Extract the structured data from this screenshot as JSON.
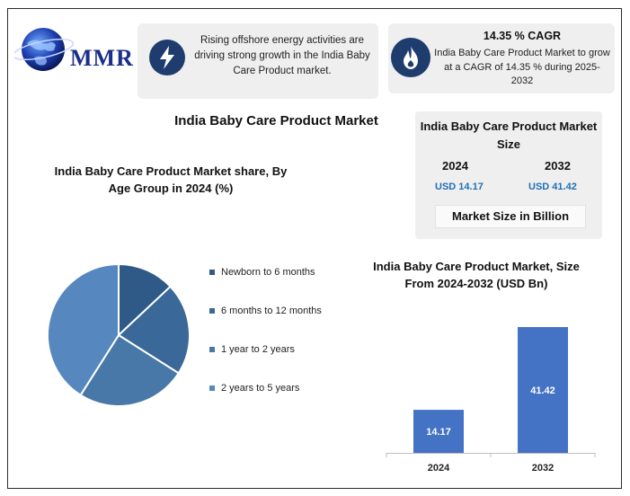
{
  "logo": {
    "text": "MMR"
  },
  "highlight": {
    "text": "Rising offshore energy activities are driving strong growth in the India Baby Care Product market.",
    "icon": "lightning-icon"
  },
  "cagr": {
    "title": "14.35 % CAGR",
    "text": "India Baby Care Product Market to grow at a CAGR of 14.35 % during 2025-2032",
    "icon": "flame-icon"
  },
  "main_title": "India Baby Care Product Market",
  "size_box": {
    "title": "India Baby Care Product Market Size",
    "year1": "2024",
    "value1": "USD 14.17",
    "year2": "2032",
    "value2": "USD 41.42",
    "unit": "Market Size in Billion"
  },
  "colors": {
    "dark_blue": "#1f3c6e",
    "accent_blue": "#1f6fb5",
    "bar": "#4472c4"
  },
  "chart_data": [
    {
      "type": "pie",
      "title": "India Baby Care Product Market share, By Age Group in 2024 (%)",
      "legend_position": "right",
      "categories": [
        "Newborn to 6 months",
        "6 months to 12 months",
        "1 year to 2 years",
        "2 years to 5 years"
      ],
      "values": [
        13,
        21,
        25,
        41
      ],
      "colors": [
        "#2f5a88",
        "#3a6898",
        "#4778a8",
        "#5688bf"
      ]
    },
    {
      "type": "bar",
      "title": "India Baby Care Product Market, Size From 2024-2032 (USD Bn)",
      "categories": [
        "2024",
        "2032"
      ],
      "values": [
        14.17,
        41.42
      ],
      "data_labels": [
        "14.17",
        "41.42"
      ],
      "ylim": [
        0,
        50
      ],
      "grid": false,
      "color": "#4472c4"
    }
  ]
}
